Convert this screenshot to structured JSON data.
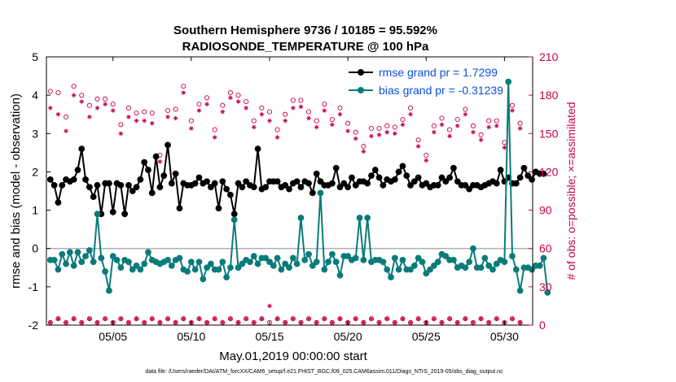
{
  "chart_data": {
    "type": "line",
    "title_line1": "Southern Hemisphere 9736 / 10185 = 95.592%",
    "title_line2": "RADIOSONDE_TEMPERATURE @ 100 hPa",
    "xlabel": "May.01,2019 00:00:00 start",
    "ylabel_left": "rmse and bias (model - observation)",
    "ylabel_right": "# of obs: o=possible; ×=assimilated",
    "footnote": "data file: /Users/raeder/DAI/ATM_forcXX/CAM6_setup/f.e21.FHIST_BGC.f09_025.CAM6assim.011/Diags_NTrS_2019-05/obs_diag_output.nc",
    "xlim": [
      0.75,
      31.8
    ],
    "ylim_left": [
      -2,
      5
    ],
    "ylim_right": [
      0,
      210
    ],
    "x_ticks": [
      {
        "value": 5,
        "label": "05/05"
      },
      {
        "value": 10,
        "label": "05/10"
      },
      {
        "value": 15,
        "label": "05/15"
      },
      {
        "value": 20,
        "label": "05/20"
      },
      {
        "value": 25,
        "label": "05/25"
      },
      {
        "value": 30,
        "label": "05/30"
      }
    ],
    "y_left_ticks": [
      "-2",
      "-1",
      "0",
      "1",
      "2",
      "3",
      "4",
      "5"
    ],
    "y_right_ticks": [
      "0",
      "30",
      "60",
      "90",
      "120",
      "150",
      "180",
      "210"
    ],
    "x_start": 1.0,
    "x_step": 0.25,
    "series": [
      {
        "name": "rmse",
        "legend": "rmse grand pr = 1.7299",
        "color": "#000000",
        "values": [
          1.8,
          1.65,
          1.2,
          1.65,
          1.8,
          1.75,
          1.8,
          2.05,
          2.6,
          1.8,
          1.6,
          1.35,
          1.65,
          0.9,
          1.7,
          1.7,
          0.95,
          1.7,
          1.65,
          0.9,
          1.65,
          1.5,
          1.6,
          1.8,
          2.25,
          2.05,
          1.45,
          2.4,
          1.6,
          1.9,
          2.7,
          1.7,
          1.95,
          1.05,
          1.7,
          1.65,
          1.65,
          1.7,
          1.85,
          1.7,
          1.75,
          1.6,
          1.7,
          1.05,
          1.75,
          1.55,
          1.4,
          0.9,
          1.7,
          1.6,
          1.75,
          1.65,
          1.6,
          2.6,
          1.55,
          1.6,
          1.75,
          1.75,
          1.75,
          1.6,
          1.65,
          1.55,
          1.7,
          1.75,
          1.6,
          1.75,
          1.7,
          1.45,
          1.95,
          1.75,
          1.65,
          1.65,
          1.7,
          2.1,
          1.6,
          1.7,
          1.6,
          1.85,
          1.65,
          1.75,
          1.75,
          1.7,
          1.9,
          2.05,
          1.85,
          1.65,
          1.8,
          1.75,
          1.8,
          2.0,
          2.15,
          1.9,
          1.65,
          1.75,
          1.85,
          1.65,
          1.7,
          1.6,
          1.65,
          1.65,
          1.85,
          1.75,
          1.85,
          2.1,
          1.75,
          1.65,
          1.65,
          1.55,
          1.65,
          1.65,
          1.6,
          1.65,
          1.7,
          1.75,
          1.7,
          2.05,
          1.75,
          1.85,
          1.7,
          1.7,
          1.85,
          2.1,
          1.9,
          1.8,
          2.0,
          1.95,
          1.95
        ],
        "gaps": [
          {
            "after_index": 33,
            "to_index": 37
          },
          {
            "after_index": 69,
            "to_index": 72
          },
          {
            "after_index": 108,
            "to_index": 111
          }
        ]
      },
      {
        "name": "bias",
        "legend": "bias grand pr = -0.31239",
        "color": "#0a7b7b",
        "values": [
          -0.3,
          -0.3,
          -0.55,
          -0.15,
          -0.4,
          -0.1,
          -0.45,
          -0.1,
          -0.35,
          -0.2,
          -0.05,
          -0.35,
          0.9,
          -0.25,
          -0.6,
          -1.1,
          -0.2,
          -0.3,
          -0.5,
          -0.3,
          -0.35,
          -0.55,
          -0.45,
          -0.55,
          -0.4,
          -0.1,
          -0.3,
          -0.35,
          -0.4,
          -0.35,
          -0.3,
          -0.45,
          -0.3,
          -0.25,
          -0.55,
          -0.6,
          -0.35,
          -0.55,
          -0.35,
          -0.8,
          -0.5,
          -0.4,
          -0.55,
          -0.55,
          -0.35,
          -0.75,
          -0.5,
          0.75,
          -0.5,
          -0.4,
          -0.3,
          -0.35,
          -0.2,
          -0.4,
          -0.25,
          -0.25,
          -0.35,
          -0.45,
          -0.25,
          -0.55,
          -0.4,
          -0.5,
          -0.25,
          -0.4,
          0.8,
          -0.3,
          -0.15,
          -0.45,
          -0.35,
          1.45,
          -0.55,
          -0.35,
          -0.15,
          -0.35,
          -0.7,
          -0.2,
          -0.2,
          -0.3,
          -0.25,
          0.8,
          -0.3,
          0.8,
          -0.35,
          -0.3,
          -0.3,
          -0.35,
          -0.55,
          -0.75,
          -0.25,
          -0.55,
          -0.3,
          -0.55,
          -0.55,
          -0.45,
          -0.25,
          -0.35,
          -0.65,
          -0.55,
          -0.45,
          -0.35,
          -0.15,
          -0.2,
          -0.3,
          -0.3,
          -0.5,
          -0.45,
          -0.5,
          -0.35,
          0.0,
          -0.5,
          -0.5,
          -0.25,
          -0.45,
          -0.55,
          -0.4,
          -0.3,
          -0.35,
          4.35,
          -0.2,
          -0.55,
          -1.1,
          -0.5,
          -0.5,
          -0.55,
          -0.45,
          -0.45,
          -0.25,
          -1.15
        ],
        "gaps": [
          {
            "after_index": 33,
            "to_index": 37
          },
          {
            "after_index": 69,
            "to_index": 72
          },
          {
            "after_index": 108,
            "to_index": 111
          }
        ]
      }
    ],
    "obs_counts": {
      "color": "#c8004f",
      "x_start": 1.0,
      "x_step": 0.5,
      "possible_upper": [
        183,
        182,
        163,
        187,
        180,
        172,
        177,
        177,
        173,
        157,
        170,
        166,
        167,
        166,
        133,
        168,
        169,
        187,
        160,
        173,
        178,
        153,
        172,
        182,
        180,
        175,
        160,
        170,
        167,
        153,
        165,
        176,
        176,
        167,
        160,
        173,
        161,
        170,
        158,
        151,
        140,
        154,
        154,
        156,
        155,
        161,
        170,
        145,
        133,
        156,
        162,
        153,
        161,
        169,
        156,
        149,
        160,
        160,
        143,
        172,
        158
      ],
      "assimilated_upper": [
        170,
        165,
        152,
        180,
        175,
        163,
        170,
        173,
        168,
        150,
        163,
        160,
        160,
        158,
        128,
        163,
        162,
        182,
        154,
        168,
        173,
        147,
        167,
        178,
        175,
        170,
        155,
        165,
        160,
        147,
        160,
        170,
        171,
        162,
        155,
        168,
        157,
        165,
        152,
        146,
        136,
        148,
        149,
        151,
        150,
        157,
        165,
        140,
        129,
        151,
        157,
        148,
        156,
        165,
        151,
        145,
        155,
        156,
        139,
        168,
        154
      ],
      "possible_lower": [
        2,
        5,
        2,
        5,
        2,
        5,
        2,
        5,
        2,
        5,
        2,
        5,
        2,
        5,
        2,
        5,
        2,
        5,
        2,
        5,
        2,
        5,
        2,
        5,
        2,
        5,
        2,
        5,
        2,
        5,
        2,
        5,
        2,
        5,
        2,
        5,
        2,
        5,
        2,
        5,
        2,
        5,
        2,
        5,
        2,
        5,
        2,
        5,
        2,
        5,
        2,
        5,
        2,
        5,
        2,
        5,
        2,
        5,
        2,
        5,
        2
      ],
      "assimilated_lower": [
        2,
        5,
        2,
        5,
        2,
        5,
        2,
        5,
        2,
        5,
        2,
        5,
        2,
        5,
        2,
        5,
        2,
        5,
        2,
        5,
        2,
        5,
        2,
        5,
        2,
        5,
        2,
        5,
        15,
        5,
        2,
        5,
        2,
        5,
        2,
        5,
        2,
        5,
        2,
        5,
        2,
        5,
        2,
        5,
        2,
        5,
        2,
        5,
        2,
        5,
        2,
        5,
        2,
        5,
        2,
        5,
        2,
        5,
        2,
        5,
        2
      ]
    },
    "zero_line": {
      "value": 0,
      "color": "#b0b0b0"
    },
    "legend_position": "top-right"
  }
}
